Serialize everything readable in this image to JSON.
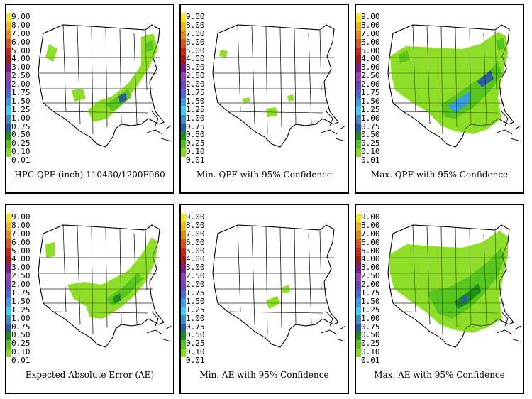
{
  "legend": {
    "labels": [
      "9.00",
      "8.00",
      "7.00",
      "6.00",
      "5.00",
      "4.00",
      "3.00",
      "2.50",
      "2.00",
      "1.75",
      "1.50",
      "1.25",
      "1.00",
      "0.75",
      "0.50",
      "0.25",
      "0.10",
      "0.01"
    ],
    "colors": [
      "#f7e81c",
      "#f2b91c",
      "#e08a1c",
      "#d4561c",
      "#c8281c",
      "#a01c1c",
      "#7c1c8c",
      "#9444b4",
      "#6c44c4",
      "#4c68d8",
      "#3c9ce8",
      "#3cd0f0",
      "#3c8cc8",
      "#2c58a8",
      "#1c8c1c",
      "#54c41c",
      "#88dc1c",
      "#ffffff"
    ]
  },
  "panels": [
    {
      "caption": "HPC QPF (inch) 110430/1200F060"
    },
    {
      "caption": "Min. QPF with 95% Confidence"
    },
    {
      "caption": "Max. QPF with 95% Confidence"
    },
    {
      "caption": "Expected Absolute Error (AE)"
    },
    {
      "caption": "Min. AE with 95% Confidence"
    },
    {
      "caption": "Max. AE with 95% Confidence"
    }
  ]
}
